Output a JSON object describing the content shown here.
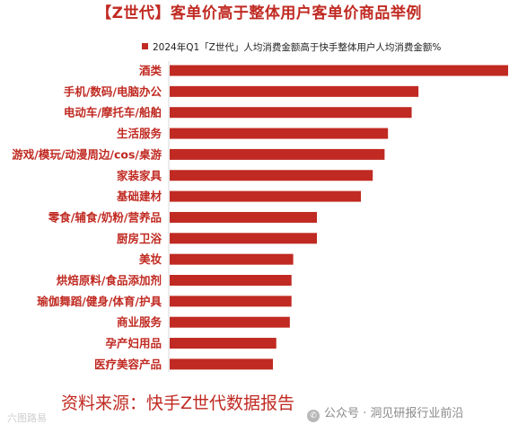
{
  "chart_data": {
    "type": "bar",
    "orientation": "horizontal",
    "title": "【Z世代】客单价高于整体用户客单价商品举例",
    "series": [
      {
        "name": "2024年Q1「Z世代」人均消费金额高于快手整体用户人均消费金额%",
        "color": "#c02a22",
        "values": [
          100,
          73.5,
          71.5,
          64.5,
          63.5,
          60,
          56.5,
          43.5,
          43.5,
          36.5,
          36,
          36,
          35.5,
          31.5,
          30.5
        ]
      }
    ],
    "categories": [
      "酒类",
      "手机/数码/电脑办公",
      "电动车/摩托车/船舶",
      "生活服务",
      "游戏/模玩/动漫周边/cos/桌游",
      "家装家具",
      "基础建材",
      "零食/辅食/奶粉/营养品",
      "厨房卫浴",
      "美妆",
      "烘焙原料/食品添加剂",
      "瑜伽舞蹈/健身/体育/护具",
      "商业服务",
      "孕产妇用品",
      "医疗美容产品"
    ],
    "value_axis": "hidden",
    "legend_position": "top",
    "grid": false
  },
  "footer": {
    "source": "资料来源：快手Z世代数据报告",
    "watermark_left": "六图路易",
    "watermark_right": "公众号 · 洞见研报行业前沿",
    "watermark_icon": "wechat-icon"
  }
}
